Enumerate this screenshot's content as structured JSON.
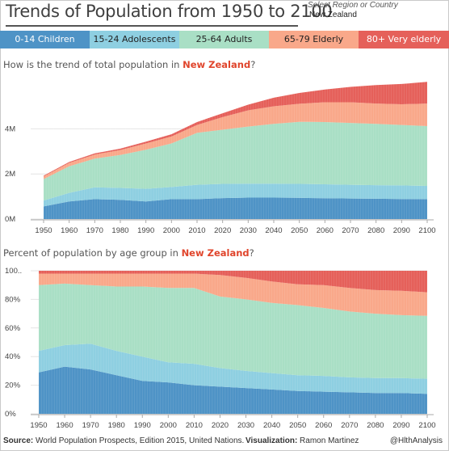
{
  "title": "Trends of Population from 1950 to 2100",
  "selector": {
    "label": "Select Region or Country",
    "value": "New Zealand"
  },
  "legend": [
    {
      "name": "0-14 Children",
      "color": "#4e93c6",
      "width": 111,
      "dark": true
    },
    {
      "name": "15-24 Adolescents",
      "color": "#8ecfe1",
      "width": 111,
      "dark": false
    },
    {
      "name": "25-64 Adults",
      "color": "#a9dfc5",
      "width": 111,
      "dark": false
    },
    {
      "name": "65-79 Elderly",
      "color": "#f9a88a",
      "width": 111,
      "dark": false
    },
    {
      "name": "80+ Very elderly",
      "color": "#e5605a",
      "width": 112,
      "dark": true
    }
  ],
  "q1": {
    "prefix": "How is the trend of total population in ",
    "region": "New Zealand",
    "suffix": "?"
  },
  "q2": {
    "prefix": "Percent of population by age group in ",
    "region": "New Zealand",
    "suffix": "?"
  },
  "footer": {
    "source_label": "Source:",
    "source": " World Population Prospects, Edition 2015, United Nations.",
    "viz_label": "Visualization:",
    "viz": " Ramon Martinez",
    "handle": "@HlthAnalysis"
  },
  "chart_data": [
    {
      "type": "area",
      "stacked": true,
      "region": "New Zealand",
      "x": [
        1950,
        1960,
        1970,
        1980,
        1990,
        2000,
        2010,
        2020,
        2030,
        2040,
        2050,
        2060,
        2070,
        2080,
        2090,
        2100
      ],
      "xticks": [
        "1950",
        "1960",
        "1970",
        "1980",
        "1990",
        "2000",
        "2010",
        "2020",
        "2030",
        "2040",
        "2050",
        "2060",
        "2070",
        "2080",
        "2090",
        "2100"
      ],
      "ylim": [
        0,
        6200000
      ],
      "yticks": [
        0,
        2000000,
        4000000
      ],
      "ytick_labels": [
        "0M",
        "2M",
        "4M"
      ],
      "series": [
        {
          "name": "0-14 Children",
          "color": "#4e93c6",
          "values": [
            560000,
            780000,
            880000,
            850000,
            780000,
            880000,
            880000,
            930000,
            950000,
            950000,
            940000,
            920000,
            910000,
            900000,
            890000,
            880000
          ]
        },
        {
          "name": "15-24 Adolescents",
          "color": "#8ecfe1",
          "values": [
            260000,
            380000,
            530000,
            530000,
            560000,
            540000,
            640000,
            630000,
            620000,
            620000,
            620000,
            620000,
            610000,
            600000,
            600000,
            590000
          ]
        },
        {
          "name": "25-64 Adults",
          "color": "#a9dfc5",
          "values": [
            950000,
            1180000,
            1270000,
            1460000,
            1730000,
            1930000,
            2300000,
            2400000,
            2530000,
            2650000,
            2750000,
            2760000,
            2740000,
            2720000,
            2680000,
            2650000
          ]
        },
        {
          "name": "65-79 Elderly",
          "color": "#f9a88a",
          "values": [
            120000,
            150000,
            180000,
            220000,
            280000,
            310000,
            350000,
            560000,
            720000,
            780000,
            800000,
            880000,
            920000,
            900000,
            920000,
            1000000
          ]
        },
        {
          "name": "80+ Very elderly",
          "color": "#e5605a",
          "values": [
            30000,
            40000,
            50000,
            60000,
            80000,
            100000,
            130000,
            170000,
            250000,
            380000,
            480000,
            560000,
            680000,
            820000,
            900000,
            960000
          ]
        }
      ]
    },
    {
      "type": "area",
      "stacked": true,
      "percent": true,
      "region": "New Zealand",
      "x": [
        1950,
        1960,
        1970,
        1980,
        1990,
        2000,
        2010,
        2020,
        2030,
        2040,
        2050,
        2060,
        2070,
        2080,
        2090,
        2100
      ],
      "xticks": [
        "1950",
        "1960",
        "1970",
        "1980",
        "1990",
        "2000",
        "2010",
        "2020",
        "2030",
        "2040",
        "2050",
        "2060",
        "2070",
        "2080",
        "2090",
        "2100"
      ],
      "ylim": [
        0,
        100
      ],
      "yticks": [
        0,
        20,
        40,
        60,
        80,
        100
      ],
      "ytick_labels": [
        "0%",
        "20%",
        "40%",
        "60%",
        "80%",
        "100.."
      ],
      "series": [
        {
          "name": "0-14 Children",
          "color": "#4e93c6",
          "values": [
            29,
            33,
            31,
            27,
            23,
            22,
            20,
            19,
            18,
            17,
            16,
            15.5,
            15,
            14.5,
            14.5,
            14
          ]
        },
        {
          "name": "15-24 Adolescents",
          "color": "#8ecfe1",
          "values": [
            15,
            15,
            18,
            17,
            17,
            14,
            15,
            13,
            12,
            11.5,
            11,
            11,
            10.5,
            10.5,
            10.5,
            10.5
          ]
        },
        {
          "name": "25-64 Adults",
          "color": "#a9dfc5",
          "values": [
            46,
            43,
            41,
            45,
            49,
            52,
            53,
            50,
            50,
            49,
            49,
            47.5,
            46,
            45,
            44,
            44
          ]
        },
        {
          "name": "65-79 Elderly",
          "color": "#f9a88a",
          "values": [
            8,
            7,
            8,
            9,
            9,
            10,
            10,
            15,
            15,
            15,
            14.5,
            16,
            16.5,
            16.5,
            17,
            16.5
          ]
        },
        {
          "name": "80+ Very elderly",
          "color": "#e5605a",
          "values": [
            2,
            2,
            2,
            2,
            2,
            2,
            2,
            3,
            5,
            7.5,
            9.5,
            10,
            12,
            13.5,
            14,
            15
          ]
        }
      ]
    }
  ]
}
